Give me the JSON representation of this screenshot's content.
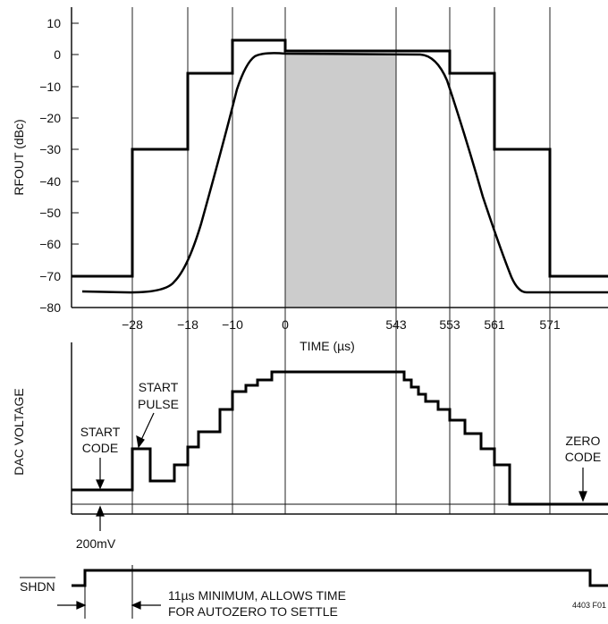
{
  "chart_data": [
    {
      "type": "line",
      "ylabel": "RFOUT (dBc)",
      "xlabel": "TIME (µs)",
      "ylim": [
        -80,
        10
      ],
      "yticks": [
        10,
        0,
        -10,
        -20,
        -30,
        -40,
        -50,
        -60,
        -70,
        -80
      ],
      "xticks": [
        "−28",
        "−18",
        "−10",
        "0",
        "543",
        "553",
        "561",
        "571"
      ],
      "grid": "vertical lines at x ticks",
      "shaded_region": {
        "from": "0",
        "to": "543",
        "color": "#cccccc"
      },
      "series": [
        {
          "name": "",
          "style": "step",
          "points": [
            [
              "start",
              -70
            ],
            [
              "−28",
              -70
            ],
            [
              "−28",
              -30
            ],
            [
              "−18",
              -30
            ],
            [
              "−18",
              -6
            ],
            [
              "−10",
              -6
            ],
            [
              "−10",
              4.5
            ],
            [
              "0",
              4.5
            ],
            [
              "0",
              1
            ],
            [
              "553",
              1
            ],
            [
              "553",
              -6
            ],
            [
              "561",
              -6
            ],
            [
              "561",
              -30
            ],
            [
              "571",
              -30
            ],
            [
              "571",
              -70
            ],
            [
              "end",
              -70
            ]
          ]
        },
        {
          "name": "",
          "style": "smooth",
          "description_values": "RF output envelope: ~−75 dBc before ramp, rises through −28…0 to ~0 dBc, stays flat to ~553, falls to ~−76 dBc after 561"
        }
      ]
    },
    {
      "type": "line",
      "ylabel": "DAC VOLTAGE",
      "style": "staircase",
      "annotations": {
        "start_code": [
          "START",
          "CODE"
        ],
        "start_pulse": [
          "START",
          "PULSE"
        ],
        "zero_code": [
          "ZERO",
          "CODE"
        ],
        "voltage": "200mV"
      }
    },
    {
      "type": "line",
      "label": "SHDN",
      "annotation": [
        "11µs MINIMUM, ALLOWS TIME",
        "FOR AUTOZERO TO SETTLE"
      ]
    }
  ],
  "figure_id": "4403 F01"
}
